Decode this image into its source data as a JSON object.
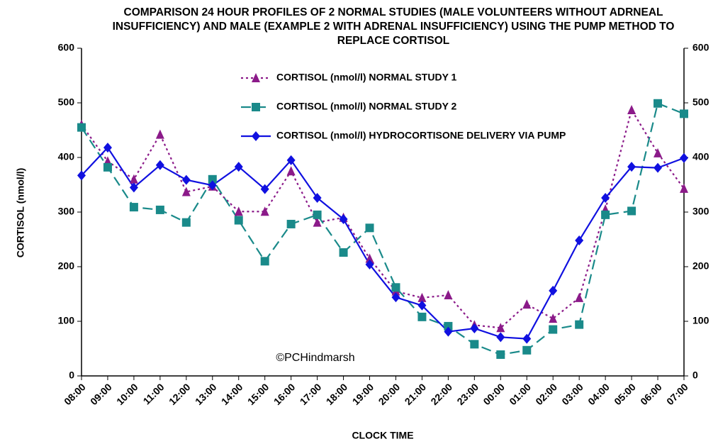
{
  "chart_data": {
    "type": "line",
    "title": "COMPARISON 24 HOUR PROFILES OF 2 NORMAL STUDIES (MALE VOLUNTEERS WITHOUT ADRNEAL INSUFFICIENCY) AND MALE (EXAMPLE 2 WITH ADRENAL INSUFFICIENCY) USING THE PUMP METHOD TO REPLACE CORTISOL",
    "x_label": "CLOCK TIME",
    "y_label": "CORTISOL (nmol/l)",
    "annotation": "©PCHindmarsh",
    "categories": [
      "08:00",
      "09:00",
      "10:00",
      "11:00",
      "12:00",
      "13:00",
      "14:00",
      "15:00",
      "16:00",
      "17:00",
      "18:00",
      "19:00",
      "20:00",
      "21:00",
      "22:00",
      "23:00",
      "00:00",
      "01:00",
      "02:00",
      "03:00",
      "04:00",
      "05:00",
      "06:00",
      "07:00"
    ],
    "series": [
      {
        "name": "CORTISOL (nmol/l) NORMAL STUDY 1",
        "color": "#8b1a89",
        "marker": "triangle",
        "dash": "dotted",
        "values": [
          460,
          393,
          360,
          442,
          337,
          347,
          301,
          301,
          375,
          281,
          290,
          215,
          155,
          143,
          148,
          93,
          88,
          131,
          105,
          143,
          305,
          487,
          408,
          343
        ]
      },
      {
        "name": "CORTISOL (nmol/l) NORMAL STUDY 2",
        "color": "#1a8a8a",
        "marker": "square",
        "dash": "dashed",
        "values": [
          455,
          382,
          309,
          304,
          281,
          360,
          285,
          210,
          278,
          295,
          226,
          271,
          162,
          108,
          91,
          58,
          39,
          47,
          85,
          94,
          295,
          302,
          499,
          480
        ]
      },
      {
        "name": "CORTISOL (nmol/l) HYDROCORTISONE DELIVERY VIA PUMP",
        "color": "#1010e0",
        "marker": "diamond",
        "dash": "solid",
        "values": [
          367,
          418,
          345,
          386,
          359,
          349,
          383,
          342,
          395,
          326,
          287,
          204,
          144,
          129,
          81,
          87,
          71,
          68,
          156,
          248,
          326,
          383,
          381,
          399
        ]
      }
    ],
    "ylim": [
      0,
      600
    ],
    "yticks": [
      0,
      100,
      200,
      300,
      400,
      500,
      600
    ],
    "grid": false
  }
}
